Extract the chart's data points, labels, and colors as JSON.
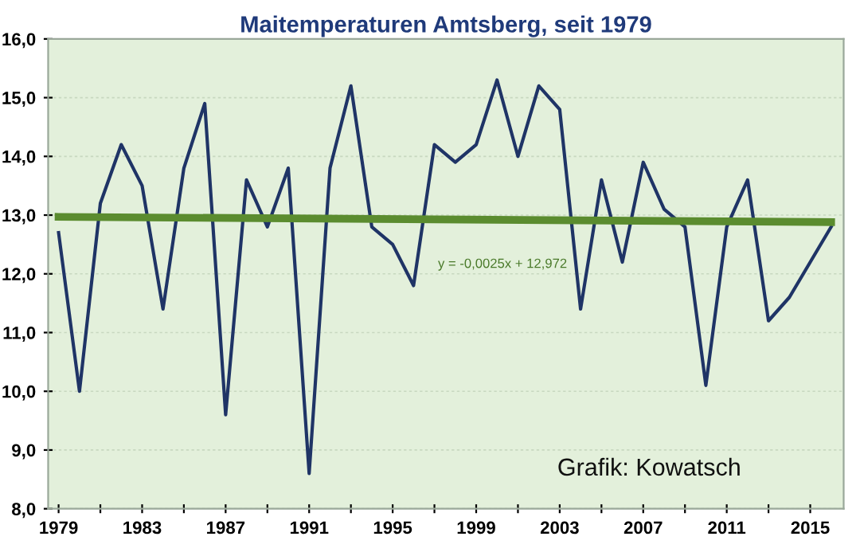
{
  "chart_data": {
    "type": "line",
    "title": "Maitemperaturen Amtsberg, seit 1979",
    "x": [
      1979,
      1980,
      1981,
      1982,
      1983,
      1984,
      1985,
      1986,
      1987,
      1988,
      1989,
      1990,
      1991,
      1992,
      1993,
      1994,
      1995,
      1996,
      1997,
      1998,
      1999,
      2000,
      2001,
      2002,
      2003,
      2004,
      2005,
      2006,
      2007,
      2008,
      2009,
      2010,
      2011,
      2012,
      2013,
      2014,
      2015,
      2016
    ],
    "series": [
      {
        "color": "#1f3466",
        "values": [
          12.7,
          10.0,
          13.2,
          14.2,
          13.5,
          11.4,
          13.8,
          14.9,
          9.6,
          13.6,
          12.8,
          13.8,
          8.6,
          13.8,
          15.2,
          12.8,
          12.5,
          11.8,
          14.2,
          13.9,
          14.2,
          15.3,
          14.0,
          15.2,
          14.8,
          11.4,
          13.6,
          12.2,
          13.9,
          13.1,
          12.8,
          10.1,
          12.8,
          13.6,
          11.2,
          11.6,
          12.2,
          12.8
        ]
      },
      {
        "type": "line",
        "color": "#5b8c2f",
        "x": [
          1979,
          2016
        ],
        "values": [
          12.97,
          12.88
        ]
      }
    ],
    "xlim": [
      1978.5,
      2016.6
    ],
    "xticks": [
      1979,
      {
        "value": 1981,
        "label": null
      },
      1983,
      {
        "value": 1985,
        "label": null
      },
      1987,
      {
        "value": 1989,
        "label": null
      },
      1991,
      {
        "value": 1993,
        "label": null
      },
      1995,
      {
        "value": 1997,
        "label": null
      },
      1999,
      {
        "value": 2001,
        "label": null
      },
      2003,
      {
        "value": 2005,
        "label": null
      },
      2007,
      {
        "value": 2009,
        "label": null
      },
      2011,
      {
        "value": 2013,
        "label": null
      },
      2015
    ],
    "ylim": [
      8,
      16
    ],
    "yticks": [
      {
        "value": 8,
        "label": "8,0"
      },
      {
        "value": 9,
        "label": "9,0"
      },
      {
        "value": 10,
        "label": "10,0"
      },
      {
        "value": 11,
        "label": "11,0"
      },
      {
        "value": 12,
        "label": "12,0"
      },
      {
        "value": 13,
        "label": "13,0"
      },
      {
        "value": 14,
        "label": "14,0"
      },
      {
        "value": 15,
        "label": "15,0"
      },
      {
        "value": 16,
        "label": "16,0"
      }
    ],
    "grid": "y",
    "marker": "none",
    "legend": false,
    "annotations": [
      "y = -0,0025x + 12,972",
      "Grafik: Kowatsch"
    ]
  }
}
